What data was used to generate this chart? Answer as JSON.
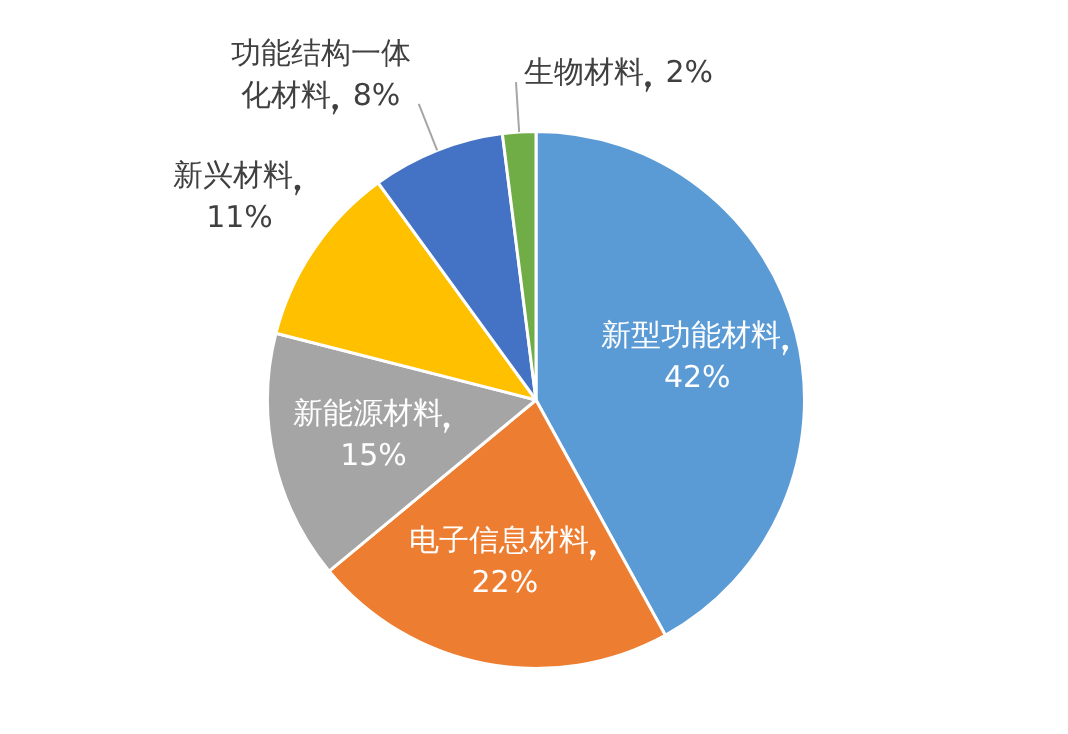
{
  "chart_data": {
    "type": "pie",
    "categories": [
      "新型功能材料",
      "电子信息材料",
      "新能源材料",
      "新兴材料",
      "功能结构一体化材料",
      "生物材料"
    ],
    "values": [
      42,
      22,
      15,
      11,
      8,
      2
    ],
    "colors": [
      "#5b9bd5",
      "#ed7d31",
      "#a5a5a5",
      "#ffc000",
      "#4472c4",
      "#70ad47"
    ],
    "value_labels": [
      "42%",
      "22%",
      "15%",
      "11%",
      "8%",
      "2%"
    ]
  }
}
